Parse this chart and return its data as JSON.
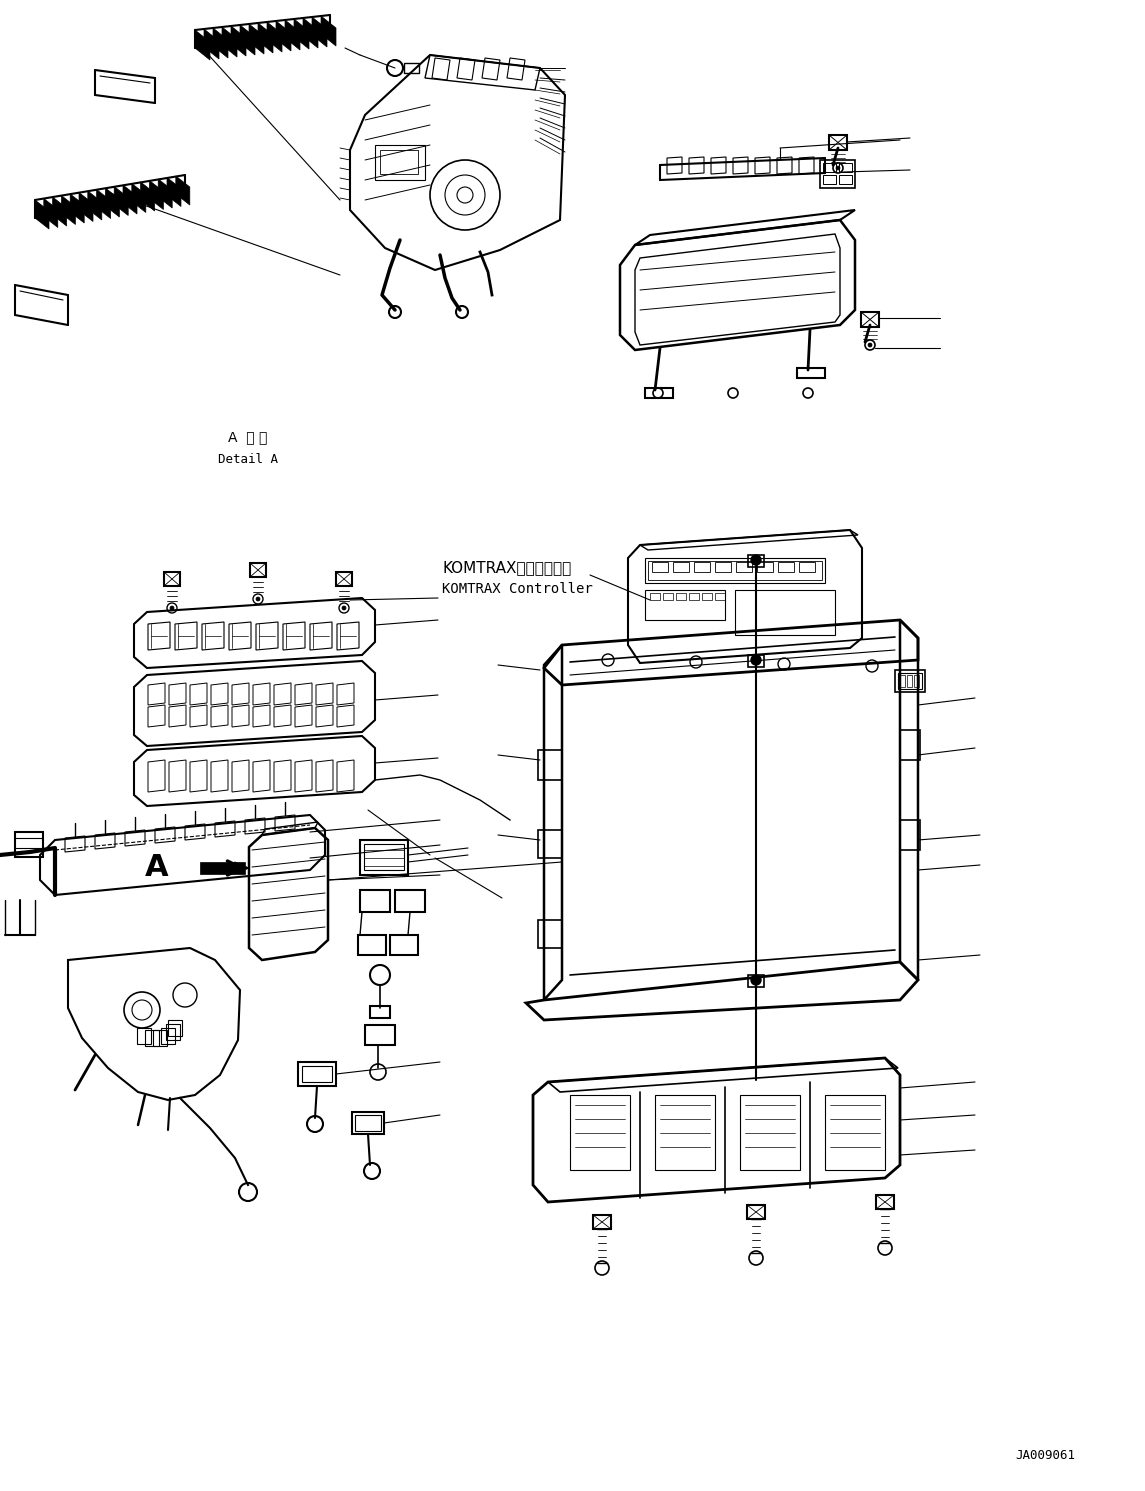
{
  "fig_w": 11.45,
  "fig_h": 14.91,
  "dpi": 100,
  "bg": "#ffffff",
  "lc": "#000000",
  "detail_a_text": "A 詳細\nDetail A",
  "komtrax_jp": "KOMTRAXコントローラ",
  "komtrax_en": "KOMTRAX Controller",
  "part_no": "JA009061"
}
